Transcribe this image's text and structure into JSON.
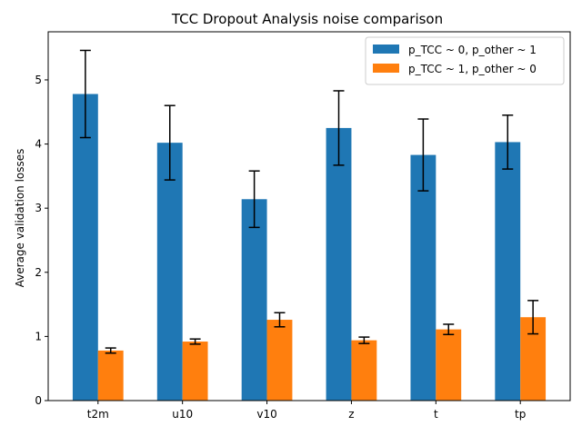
{
  "chart_data": {
    "type": "bar",
    "title": "TCC Dropout Analysis noise comparison",
    "xlabel": "",
    "ylabel": "Average validation losses",
    "categories": [
      "t2m",
      "u10",
      "v10",
      "z",
      "t",
      "tp"
    ],
    "ylim": [
      0,
      5.75
    ],
    "yticks": [
      0,
      1,
      2,
      3,
      4,
      5
    ],
    "grid": false,
    "legend_position": "top-right",
    "series": [
      {
        "name": "p_TCC ~ 0, p_other ~ 1",
        "color": "#1f77b4",
        "values": [
          4.78,
          4.02,
          3.14,
          4.25,
          3.83,
          4.03
        ],
        "errors": [
          0.68,
          0.58,
          0.44,
          0.58,
          0.56,
          0.42
        ]
      },
      {
        "name": "p_TCC ~ 1, p_other ~ 0",
        "color": "#ff7f0e",
        "values": [
          0.78,
          0.92,
          1.26,
          0.94,
          1.11,
          1.3
        ],
        "errors": [
          0.04,
          0.04,
          0.11,
          0.05,
          0.08,
          0.26
        ]
      }
    ]
  }
}
